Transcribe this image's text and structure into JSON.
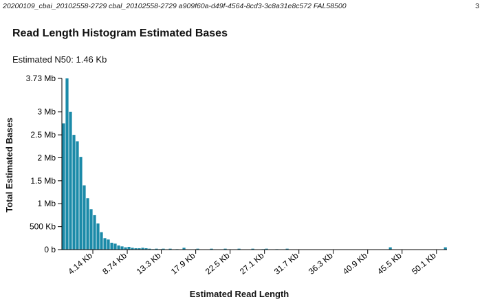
{
  "header": {
    "meta": "20200109_cbai_20102558-2729   cbal_20102558-2729   a909f60a-d49f-4564-8cd3-3c8a31e8c572   FAL58500",
    "page_number": "3"
  },
  "n50_label": "Estimated N50: 1.46 Kb",
  "chart_data": {
    "type": "bar",
    "title": "Read Length Histogram Estimated Bases",
    "xlabel": "Estimated Read Length",
    "ylabel": "Total Estimated Bases",
    "bar_color": "#1b8aa8",
    "x_unit": "Kb",
    "x_domain": [
      0,
      51.5
    ],
    "bin_width_kb": 0.46,
    "ylim_mb": [
      0,
      3.73
    ],
    "yticks": [
      {
        "value": 0,
        "label": "0 b"
      },
      {
        "value": 0.5,
        "label": "500 Kb"
      },
      {
        "value": 1,
        "label": "1 Mb"
      },
      {
        "value": 1.5,
        "label": "1.5 Mb"
      },
      {
        "value": 2,
        "label": "2 Mb"
      },
      {
        "value": 2.5,
        "label": "2.5 Mb"
      },
      {
        "value": 3,
        "label": "3 Mb"
      },
      {
        "value": 3.73,
        "label": "3.73 Mb"
      }
    ],
    "xticks": [
      {
        "value": 4.14,
        "label": "4.14 Kb"
      },
      {
        "value": 8.74,
        "label": "8.74 Kb"
      },
      {
        "value": 13.3,
        "label": "13.3 Kb"
      },
      {
        "value": 17.9,
        "label": "17.9 Kb"
      },
      {
        "value": 22.5,
        "label": "22.5 Kb"
      },
      {
        "value": 27.1,
        "label": "27.1 Kb"
      },
      {
        "value": 31.7,
        "label": "31.7 Kb"
      },
      {
        "value": 36.3,
        "label": "36.3 Kb"
      },
      {
        "value": 40.9,
        "label": "40.9 Kb"
      },
      {
        "value": 45.5,
        "label": "45.5 Kb"
      },
      {
        "value": 50.1,
        "label": "50.1 Kb"
      }
    ],
    "bins_kb": [
      0.23,
      0.69,
      1.15,
      1.61,
      2.07,
      2.53,
      2.99,
      3.45,
      3.91,
      4.37,
      4.83,
      5.29,
      5.75,
      6.21,
      6.67,
      7.13,
      7.59,
      8.05,
      8.51,
      8.97,
      9.43,
      9.89,
      10.35,
      10.81,
      11.27,
      11.73,
      12.19,
      12.65,
      13.11,
      13.57,
      14.49,
      15.41,
      16.33,
      18.17,
      20.01,
      21.85,
      23.69,
      25.53,
      26.91,
      27.37,
      28.75,
      30.13,
      43.93,
      51.29
    ],
    "values_mb": [
      2.75,
      3.73,
      3.0,
      2.5,
      2.36,
      2.02,
      1.4,
      1.12,
      0.88,
      0.75,
      0.57,
      0.38,
      0.25,
      0.22,
      0.15,
      0.13,
      0.09,
      0.07,
      0.05,
      0.06,
      0.04,
      0.03,
      0.03,
      0.04,
      0.03,
      0.02,
      0.01,
      0.02,
      0.01,
      0.02,
      0.02,
      0.01,
      0.04,
      0.02,
      0.02,
      0.02,
      0.02,
      0.02,
      0.01,
      0.02,
      0.01,
      0.02,
      0.05,
      0.05
    ]
  }
}
